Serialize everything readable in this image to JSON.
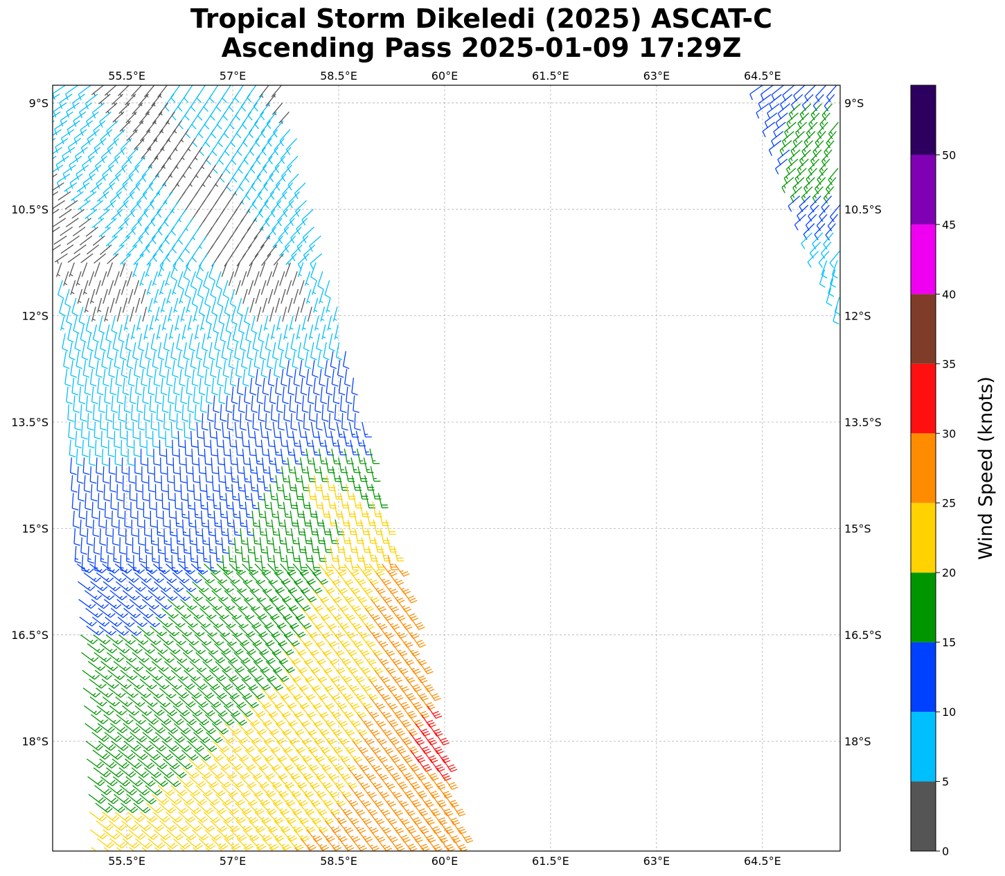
{
  "title": {
    "line1": "Tropical Storm Dikeledi (2025) ASCAT-C",
    "line2": "Ascending Pass 2025-01-09 17:29Z"
  },
  "chart_data": {
    "type": "wind-barb map",
    "xlim": [
      54.45,
      65.6
    ],
    "ylim": [
      -19.55,
      -8.75
    ],
    "x_ticks": [
      {
        "value": 55.5,
        "label": "55.5°E"
      },
      {
        "value": 57.0,
        "label": "57°E"
      },
      {
        "value": 58.5,
        "label": "58.5°E"
      },
      {
        "value": 60.0,
        "label": "60°E"
      },
      {
        "value": 61.5,
        "label": "61.5°E"
      },
      {
        "value": 63.0,
        "label": "63°E"
      },
      {
        "value": 64.5,
        "label": "64.5°E"
      }
    ],
    "y_ticks": [
      {
        "value": -9.0,
        "label": "9°S"
      },
      {
        "value": -10.5,
        "label": "10.5°S"
      },
      {
        "value": -12.0,
        "label": "12°S"
      },
      {
        "value": -13.5,
        "label": "13.5°S"
      },
      {
        "value": -15.0,
        "label": "15°S"
      },
      {
        "value": -16.5,
        "label": "16.5°S"
      },
      {
        "value": -18.0,
        "label": "18°S"
      }
    ],
    "grid": true,
    "colorbar": {
      "label": "Wind Speed (knots)",
      "range": [
        0,
        55
      ],
      "ticks": [
        "0",
        "5",
        "10",
        "15",
        "20",
        "25",
        "30",
        "35",
        "40",
        "45",
        "50"
      ],
      "bins": [
        {
          "min": 0,
          "max": 5,
          "color": "#555555"
        },
        {
          "min": 5,
          "max": 10,
          "color": "#00bfff"
        },
        {
          "min": 10,
          "max": 15,
          "color": "#0040ff"
        },
        {
          "min": 15,
          "max": 20,
          "color": "#009600"
        },
        {
          "min": 20,
          "max": 25,
          "color": "#ffd200"
        },
        {
          "min": 25,
          "max": 30,
          "color": "#ff8c00"
        },
        {
          "min": 30,
          "max": 35,
          "color": "#ff1010"
        },
        {
          "min": 35,
          "max": 40,
          "color": "#7f3c28"
        },
        {
          "min": 40,
          "max": 45,
          "color": "#f000f0"
        },
        {
          "min": 45,
          "max": 50,
          "color": "#8000b4"
        },
        {
          "min": 50,
          "max": 55,
          "color": "#2d0060"
        }
      ]
    },
    "swaths": [
      {
        "lon_left_north": 54.45,
        "lon_right_north": 57.75,
        "lon_left_south": 55.0,
        "lon_right_south": 60.3,
        "lat_north": -8.75,
        "lat_south": -19.55,
        "row_step_deg": 0.125,
        "col_step_deg": 0.18
      },
      {
        "lon_left_north": 64.5,
        "lon_right_north": 65.6,
        "lon_left_south": 65.6,
        "lon_right_south": 65.6,
        "lat_north": -8.75,
        "lat_south": -12.0,
        "row_step_deg": 0.13,
        "col_step_deg": 0.15
      }
    ]
  }
}
